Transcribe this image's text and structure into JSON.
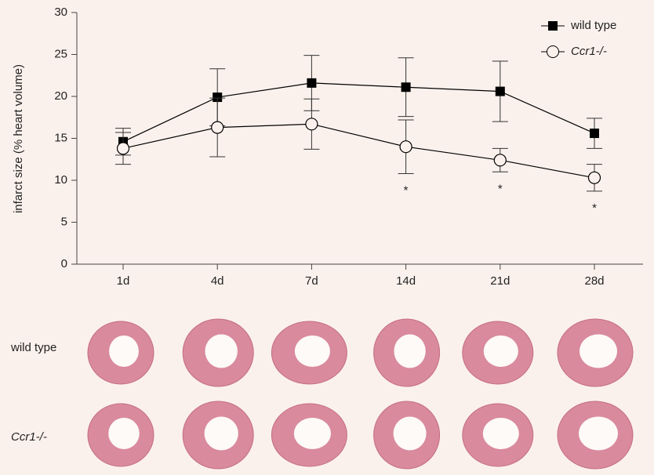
{
  "chart_data": {
    "type": "line",
    "y_label": "infarct size (% heart volume)",
    "categories": [
      "1d",
      "4d",
      "7d",
      "14d",
      "21d",
      "28d"
    ],
    "series": [
      {
        "name": "wild type",
        "color": "#000000",
        "marker": "filled-square",
        "values": [
          14.6,
          19.9,
          21.6,
          21.1,
          20.6,
          15.6
        ],
        "errors": [
          1.6,
          3.4,
          3.3,
          3.5,
          3.6,
          1.8
        ]
      },
      {
        "name": "Ccr1-/-",
        "color": "#000000",
        "marker": "open-circle",
        "values": [
          13.8,
          16.3,
          16.7,
          14.0,
          12.4,
          10.3
        ],
        "errors": [
          1.9,
          3.5,
          3.0,
          3.2,
          1.4,
          1.6
        ]
      }
    ],
    "ylim": [
      0,
      30
    ],
    "yticks": [
      0,
      5,
      10,
      15,
      20,
      25,
      30
    ],
    "legend": "top-right",
    "annotations": [
      {
        "text": "*",
        "at": "14d"
      },
      {
        "text": "*",
        "at": "21d"
      },
      {
        "text": "*",
        "at": "28d"
      }
    ]
  },
  "figure_panel": {
    "row_labels": [
      "wild type",
      "Ccr1-/-"
    ]
  }
}
